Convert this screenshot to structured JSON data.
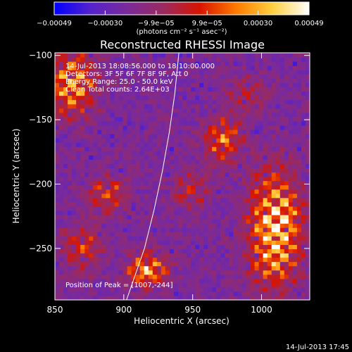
{
  "chart_data": {
    "type": "heatmap",
    "title": "Reconstructed RHESSI Image",
    "xlabel": "Heliocentric X (arcsec)",
    "ylabel": "Heliocentric Y (arcsec)",
    "xlim": [
      850,
      1035
    ],
    "ylim": [
      -290,
      -98
    ],
    "x_ticks": [
      {
        "value": 850,
        "label": "850"
      },
      {
        "value": 900,
        "label": "900"
      },
      {
        "value": 950,
        "label": "950"
      },
      {
        "value": 1000,
        "label": "1000"
      }
    ],
    "y_ticks": [
      {
        "value": -100,
        "label": "−100"
      },
      {
        "value": -150,
        "label": "−150"
      },
      {
        "value": -200,
        "label": "−200"
      },
      {
        "value": -250,
        "label": "−250"
      }
    ],
    "colorbar": {
      "range": [
        -0.00049,
        0.00049
      ],
      "tick_labels": [
        "−0.00049",
        "−0.00030",
        "−9.9e−05",
        "9.9e−05",
        "0.00030",
        "0.00049"
      ],
      "unit_label": "(photons cm⁻² s⁻¹ asec⁻²)",
      "colormap": [
        "#0000ff",
        "#5522cc",
        "#7a2a9a",
        "#9a2a60",
        "#d81400",
        "#ff7a00",
        "#ffd040",
        "#ffffff"
      ]
    },
    "annotations": [
      "14-Jul-2013 18:08:56.000 to 18:10:00.000",
      "Detectors: 3F 5F 6F 7F 8F 9F, Att 0",
      "Energy Range: 25.0 - 50.0 keV",
      "Clean     Total counts: 2.64E+03"
    ],
    "peak_label": "Position of Peak = [1007,-244]",
    "footer_timestamp": "14-Jul-2013 17:45",
    "limb_curve": [
      [
        902,
        -290
      ],
      [
        915,
        -250
      ],
      [
        922,
        -220
      ],
      [
        928,
        -190
      ],
      [
        933,
        -160
      ],
      [
        937,
        -130
      ],
      [
        940,
        -98
      ]
    ],
    "sources": [
      {
        "x": 1010,
        "y": -235,
        "amp": 1.0,
        "sx": 13,
        "sy": 30
      },
      {
        "x": 917,
        "y": -267,
        "amp": 0.8,
        "sx": 10,
        "sy": 9
      },
      {
        "x": 862,
        "y": -122,
        "amp": 0.75,
        "sx": 12,
        "sy": 18
      },
      {
        "x": 972,
        "y": -165,
        "amp": 0.65,
        "sx": 9,
        "sy": 12
      },
      {
        "x": 888,
        "y": -208,
        "amp": 0.5,
        "sx": 10,
        "sy": 10
      },
      {
        "x": 870,
        "y": -250,
        "amp": 0.45,
        "sx": 10,
        "sy": 12
      },
      {
        "x": 948,
        "y": -205,
        "amp": 0.35,
        "sx": 10,
        "sy": 10
      },
      {
        "x": 990,
        "y": -130,
        "amp": 0.3,
        "sx": 10,
        "sy": 10
      }
    ]
  }
}
